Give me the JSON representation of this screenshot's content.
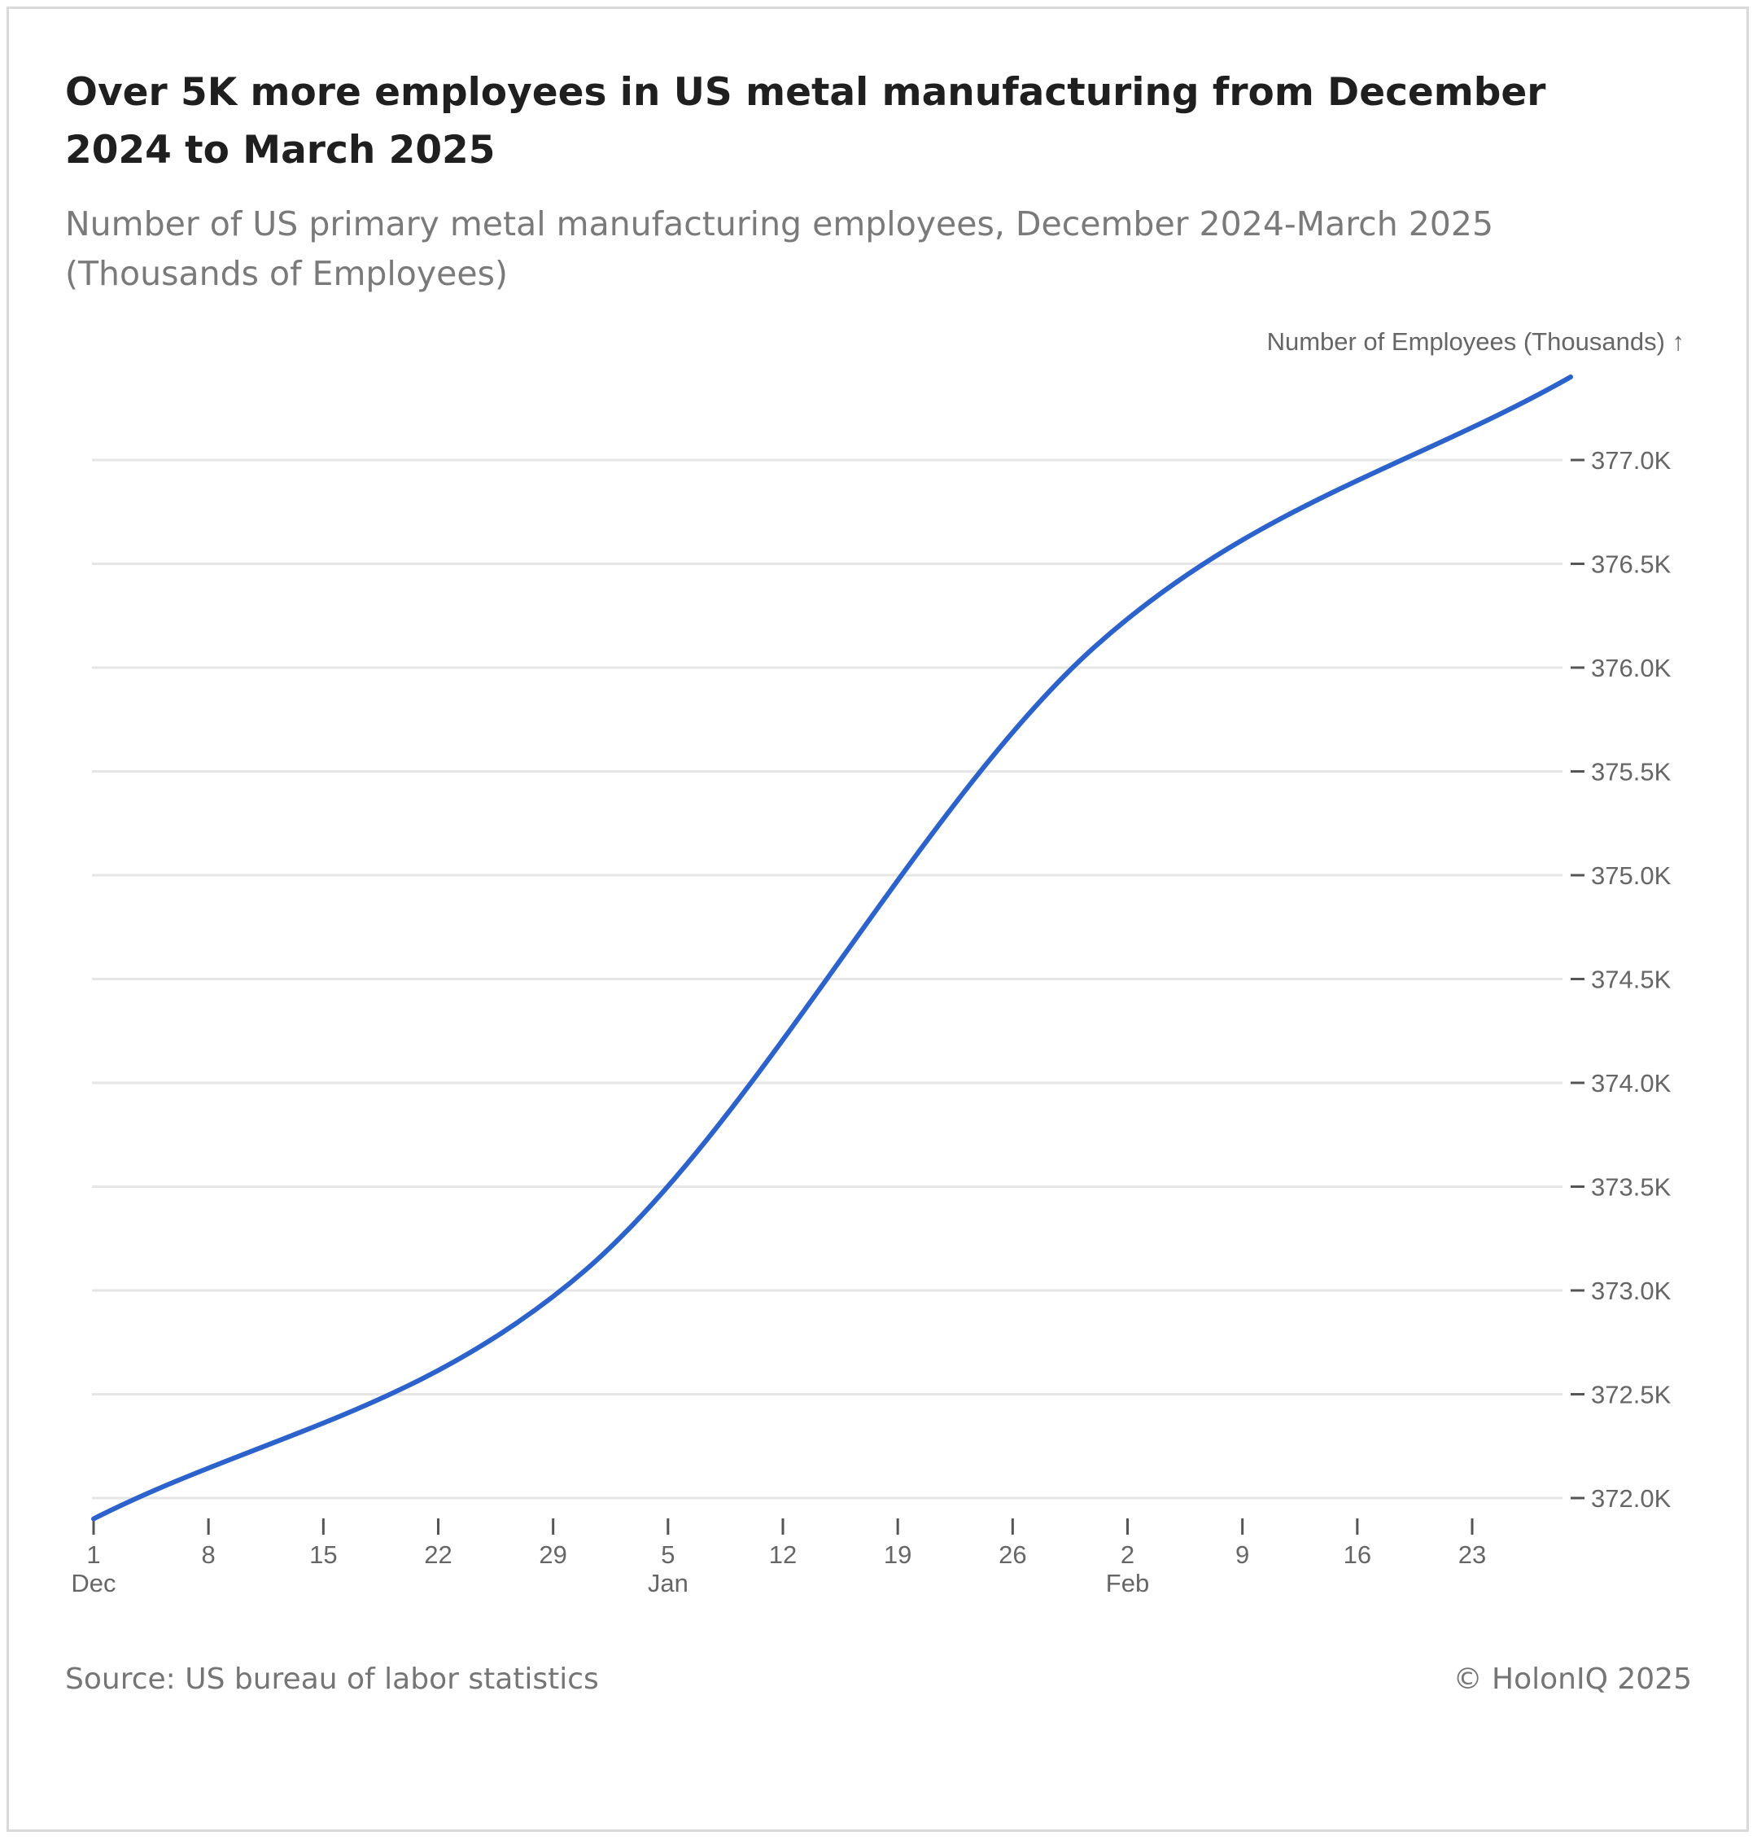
{
  "colors": {
    "line": "#2b62cc",
    "grid": "#e6e6e6",
    "axis_text": "#666666",
    "tick": "#555555"
  },
  "header": {
    "title": "Over 5K more employees in US metal manufacturing from December 2024 to March 2025",
    "subtitle": "Number of US primary metal manufacturing employees, December 2024-March 2025 (Thousands of Employees)"
  },
  "footer": {
    "source": "Source: US bureau of labor statistics",
    "copyright": "© HolonIQ 2025"
  },
  "chart_data": {
    "type": "line",
    "title": "Over 5K more employees in US metal manufacturing from December 2024 to March 2025",
    "subtitle": "Number of US primary metal manufacturing employees, December 2024-March 2025 (Thousands of Employees)",
    "ylabel": "Number of Employees (Thousands) ↑",
    "xlabel": "",
    "xlim": [
      "2024-12-01",
      "2025-03-01"
    ],
    "ylim": [
      371.9,
      377.4
    ],
    "y_ticks": [
      372.0,
      372.5,
      373.0,
      373.5,
      374.0,
      374.5,
      375.0,
      375.5,
      376.0,
      376.5,
      377.0
    ],
    "y_tick_labels": [
      "372.0K",
      "372.5K",
      "373.0K",
      "373.5K",
      "374.0K",
      "374.5K",
      "375.0K",
      "375.5K",
      "376.0K",
      "376.5K",
      "377.0K"
    ],
    "x_ticks": [
      {
        "date": "2024-12-01",
        "label": "1",
        "sublabel": "Dec"
      },
      {
        "date": "2024-12-08",
        "label": "8",
        "sublabel": ""
      },
      {
        "date": "2024-12-15",
        "label": "15",
        "sublabel": ""
      },
      {
        "date": "2024-12-22",
        "label": "22",
        "sublabel": ""
      },
      {
        "date": "2024-12-29",
        "label": "29",
        "sublabel": ""
      },
      {
        "date": "2025-01-05",
        "label": "5",
        "sublabel": "Jan"
      },
      {
        "date": "2025-01-12",
        "label": "12",
        "sublabel": ""
      },
      {
        "date": "2025-01-19",
        "label": "19",
        "sublabel": ""
      },
      {
        "date": "2025-01-26",
        "label": "26",
        "sublabel": ""
      },
      {
        "date": "2025-02-02",
        "label": "2",
        "sublabel": "Feb"
      },
      {
        "date": "2025-02-09",
        "label": "9",
        "sublabel": ""
      },
      {
        "date": "2025-02-16",
        "label": "16",
        "sublabel": ""
      },
      {
        "date": "2025-02-23",
        "label": "23",
        "sublabel": ""
      }
    ],
    "grid": true,
    "legend": "none",
    "series": [
      {
        "points": [
          {
            "x": "2024-12-01",
            "y": 371.9
          },
          {
            "x": "2024-12-31",
            "y": 373.1
          },
          {
            "x": "2025-01-31",
            "y": 376.1
          },
          {
            "x": "2025-03-01",
            "y": 377.4
          }
        ]
      }
    ]
  }
}
